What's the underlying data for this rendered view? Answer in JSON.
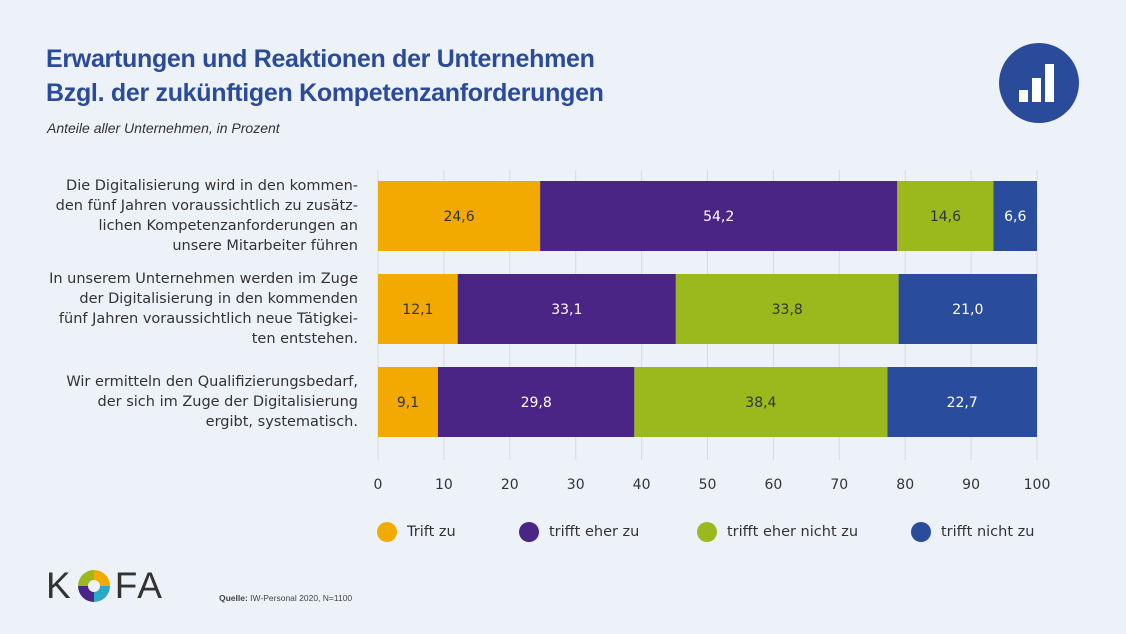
{
  "header": {
    "title_line1": "Erwartungen und Reaktionen der Unternehmen",
    "title_line2": "Bzgl. der zukünftigen Kompetenzanforderungen",
    "subtitle": "Anteile aller Unternehmen, in Prozent",
    "badge_icon": "bar-chart-icon"
  },
  "chart_data": {
    "type": "bar",
    "orientation": "horizontal",
    "stacked": true,
    "title": "Erwartungen und Reaktionen der Unternehmen Bzgl. der zukünftigen Kompetenzanforderungen",
    "subtitle": "Anteile aller Unternehmen, in Prozent",
    "xlabel": "",
    "ylabel": "",
    "xlim": [
      0,
      100
    ],
    "xticks": [
      0,
      10,
      20,
      30,
      40,
      50,
      60,
      70,
      80,
      90,
      100
    ],
    "grid": true,
    "legend_position": "bottom",
    "categories": [
      "Die Digitalisierung wird in den kommen-|den fünf Jahren voraussichtlich zu zusätz-|lichen Kompetenzanforderungen an|unsere Mitarbeiter führen",
      "In unserem Unternehmen werden im Zuge|der Digitalisierung in den kommenden|fünf Jahren voraussichtlich neue Tätigkei-|ten entstehen.",
      "Wir ermitteln den Qualifizierungsbedarf,|der sich im Zuge der Digitalisierung|ergibt, systematisch."
    ],
    "series": [
      {
        "name": "Trift zu",
        "color": "#f2aa00",
        "label_color": "#333333",
        "values": [
          24.6,
          12.1,
          9.1
        ],
        "labels": [
          "24,6",
          "12,1",
          "9,1"
        ]
      },
      {
        "name": "trifft eher zu",
        "color": "#4a2585",
        "label_color": "#ffffff",
        "values": [
          54.2,
          33.1,
          29.8
        ],
        "labels": [
          "54,2",
          "33,1",
          "29,8"
        ]
      },
      {
        "name": "trifft eher nicht zu",
        "color": "#9bb81c",
        "label_color": "#333333",
        "values": [
          14.6,
          33.8,
          38.4
        ],
        "labels": [
          "14,6",
          "33,8",
          "38,4"
        ]
      },
      {
        "name": "trifft nicht zu",
        "color": "#2a4c9c",
        "label_color": "#ffffff",
        "values": [
          6.6,
          21.0,
          22.7
        ],
        "labels": [
          "6,6",
          "21,0",
          "22,7"
        ]
      }
    ]
  },
  "footer": {
    "logo_text_left": "K",
    "logo_text_right": "FA",
    "source_label": "Quelle:",
    "source_text": " IW-Personal 2020, N=1100"
  }
}
